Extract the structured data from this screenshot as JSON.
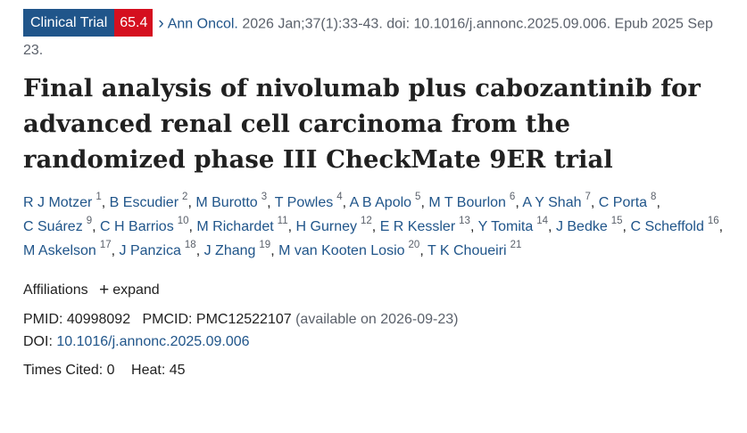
{
  "badge": {
    "type": "Clinical Trial",
    "score": "65.4",
    "type_color": "#20558a",
    "score_color": "#d50f1f"
  },
  "citation": {
    "journal": "Ann Oncol.",
    "details": "2026 Jan;37(1):33-43. doi: 10.1016/j.annonc.2025.09.006. Epub 2025 Sep 23."
  },
  "title": "Final analysis of nivolumab plus cabozantinib for advanced renal cell carcinoma from the randomized phase III CheckMate 9ER trial",
  "authors": [
    {
      "name": "R J Motzer",
      "aff": "1"
    },
    {
      "name": "B Escudier",
      "aff": "2"
    },
    {
      "name": "M Burotto",
      "aff": "3"
    },
    {
      "name": "T Powles",
      "aff": "4"
    },
    {
      "name": "A B Apolo",
      "aff": "5"
    },
    {
      "name": "M T Bourlon",
      "aff": "6"
    },
    {
      "name": "A Y Shah",
      "aff": "7"
    },
    {
      "name": "C Porta",
      "aff": "8"
    },
    {
      "name": "C Suárez",
      "aff": "9"
    },
    {
      "name": "C H Barrios",
      "aff": "10"
    },
    {
      "name": "M Richardet",
      "aff": "11"
    },
    {
      "name": "H Gurney",
      "aff": "12"
    },
    {
      "name": "E R Kessler",
      "aff": "13"
    },
    {
      "name": "Y Tomita",
      "aff": "14"
    },
    {
      "name": "J Bedke",
      "aff": "15"
    },
    {
      "name": "C Scheffold",
      "aff": "16"
    },
    {
      "name": "M Askelson",
      "aff": "17"
    },
    {
      "name": "J Panzica",
      "aff": "18"
    },
    {
      "name": "J Zhang",
      "aff": "19"
    },
    {
      "name": "M van Kooten Losio",
      "aff": "20"
    },
    {
      "name": "T K Choueiri",
      "aff": "21"
    }
  ],
  "affiliations": {
    "label": "Affiliations",
    "expand_label": "expand",
    "icon": "plus-icon"
  },
  "ids": {
    "pmid_label": "PMID:",
    "pmid": "40998092",
    "pmcid_label": "PMCID:",
    "pmcid": "PMC12522107",
    "pmcid_note": "(available on 2026-09-23)",
    "doi_label": "DOI:",
    "doi": "10.1016/j.annonc.2025.09.006"
  },
  "metrics": {
    "cited_label": "Times Cited:",
    "cited": "0",
    "heat_label": "Heat:",
    "heat": "45"
  }
}
